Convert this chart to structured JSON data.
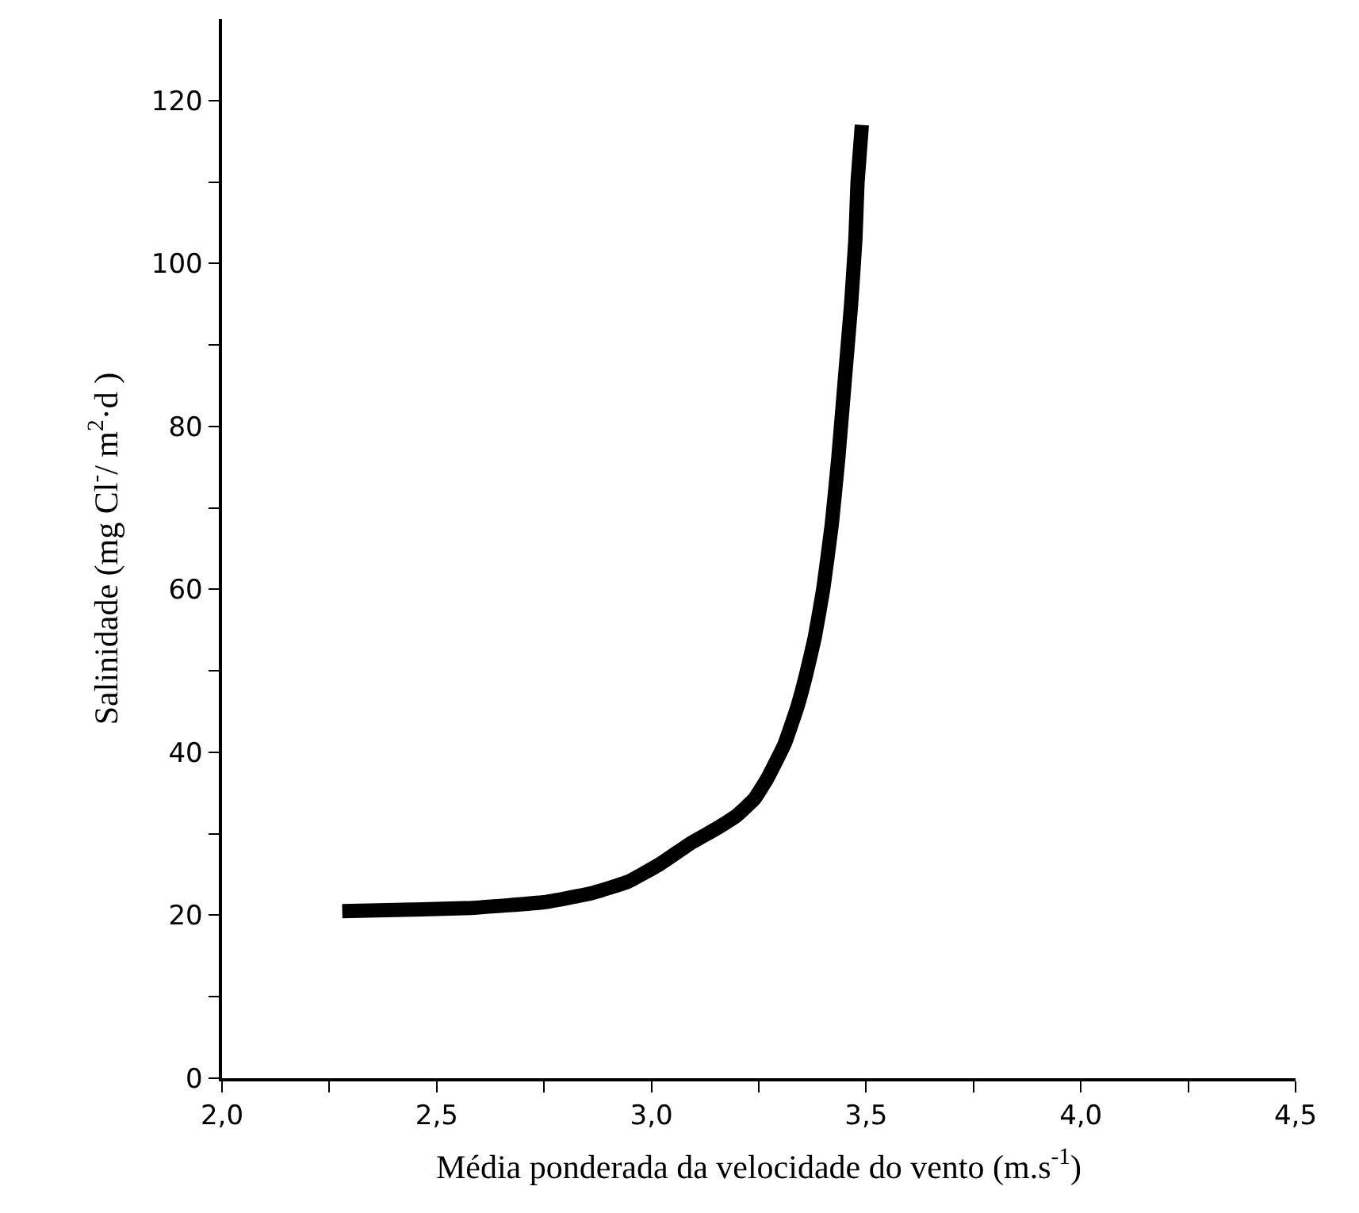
{
  "chart_data": {
    "type": "line",
    "xlabel": "Média ponderada da velocidade do vento (m.s$^{-1}$)",
    "ylabel": "Salinidade (mg Cl$^{-}$/ m$^{2}$·d )",
    "series": [
      {
        "color": "#000000",
        "x": [
          2.28,
          2.45,
          2.58,
          2.75,
          2.86,
          2.945,
          3.02,
          3.09,
          3.15,
          3.2,
          3.24,
          3.27,
          3.31,
          3.34,
          3.36,
          3.38,
          3.4,
          3.42,
          3.435,
          3.45,
          3.465,
          3.475,
          3.48,
          3.49
        ],
        "values": [
          20.5,
          20.7,
          20.9,
          21.6,
          22.7,
          24.1,
          26.3,
          28.8,
          30.6,
          32.3,
          34.3,
          36.8,
          41,
          45.6,
          49.5,
          54,
          60,
          68,
          76,
          85.5,
          95,
          103,
          110,
          117
        ]
      }
    ],
    "xlim": [
      2.0,
      4.5
    ],
    "xticks": [
      {
        "value": 2.0,
        "label": "2,0"
      },
      {
        "value": 2.25,
        "label": null
      },
      {
        "value": 2.5,
        "label": "2,5"
      },
      {
        "value": 2.75,
        "label": null
      },
      {
        "value": 3.0,
        "label": "3,0"
      },
      {
        "value": 3.25,
        "label": null
      },
      {
        "value": 3.5,
        "label": "3,5"
      },
      {
        "value": 3.75,
        "label": null
      },
      {
        "value": 4.0,
        "label": "4,0"
      },
      {
        "value": 4.25,
        "label": null
      },
      {
        "value": 4.5,
        "label": "4,5"
      }
    ],
    "ylim": [
      0,
      130
    ],
    "yticks": [
      0,
      {
        "value": 10,
        "label": null
      },
      20,
      {
        "value": 30,
        "label": null
      },
      40,
      {
        "value": 50,
        "label": null
      },
      60,
      {
        "value": 70,
        "label": null
      },
      80,
      {
        "value": 90,
        "label": null
      },
      100,
      {
        "value": 110,
        "label": null
      },
      120
    ],
    "legend": false,
    "marker": "none",
    "line_style": "solid"
  }
}
